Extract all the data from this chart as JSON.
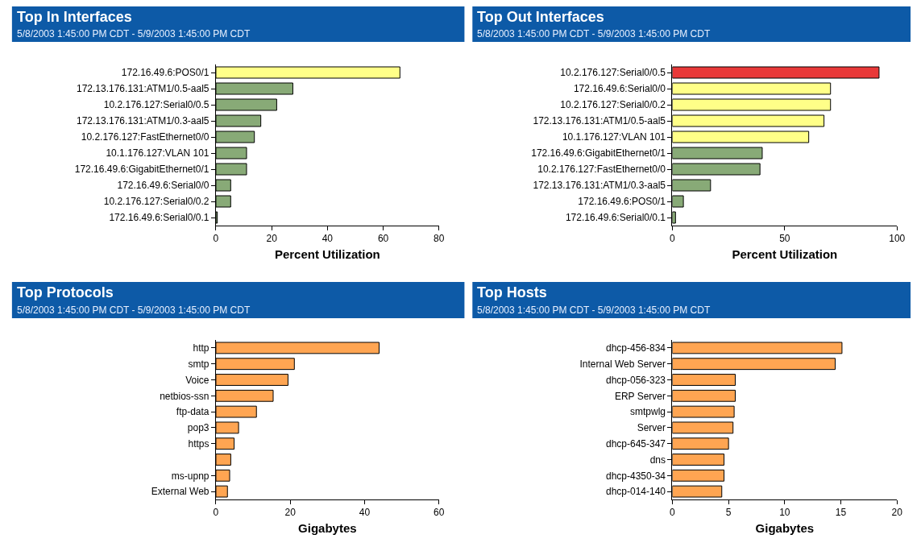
{
  "chart_data": [
    {
      "type": "bar",
      "orientation": "horizontal",
      "title": "Top In Interfaces",
      "subtitle": "5/8/2003 1:45:00 PM CDT - 5/9/2003 1:45:00 PM CDT",
      "xlabel": "Percent Utilization",
      "categories": [
        "172.16.49.6:POS0/1",
        "172.13.176.131:ATM1/0.5-aal5",
        "10.2.176.127:Serial0/0.5",
        "172.13.176.131:ATM1/0.3-aal5",
        "10.2.176.127:FastEthernet0/0",
        "10.1.176.127:VLAN 101",
        "172.16.49.6:GigabitEthernet0/1",
        "172.16.49.6:Serial0/0",
        "10.2.176.127:Serial0/0.2",
        "172.16.49.6:Serial0/0.1"
      ],
      "values": [
        66,
        27.6,
        21.8,
        16.1,
        13.8,
        11,
        11,
        5.3,
        5.3,
        0.5
      ],
      "colors": [
        "#ffff88",
        "#88aa77",
        "#88aa77",
        "#88aa77",
        "#88aa77",
        "#88aa77",
        "#88aa77",
        "#88aa77",
        "#88aa77",
        "#88aa77"
      ],
      "xlim": [
        0,
        80
      ],
      "xticks": [
        0,
        20,
        40,
        60,
        80
      ]
    },
    {
      "type": "bar",
      "orientation": "horizontal",
      "title": "Top Out Interfaces",
      "subtitle": "5/8/2003 1:45:00 PM CDT - 5/9/2003 1:45:00 PM CDT",
      "xlabel": "Percent Utilization",
      "categories": [
        "10.2.176.127:Serial0/0.5",
        "172.16.49.6:Serial0/0",
        "10.2.176.127:Serial0/0.2",
        "172.13.176.131:ATM1/0.5-aal5",
        "10.1.176.127:VLAN 101",
        "172.16.49.6:GigabitEthernet0/1",
        "10.2.176.127:FastEthernet0/0",
        "172.13.176.131:ATM1/0.3-aal5",
        "172.16.49.6:POS0/1",
        "172.16.49.6:Serial0/0.1"
      ],
      "values": [
        92,
        70.4,
        70.4,
        67.5,
        60.7,
        40,
        39,
        17,
        4.9,
        1.4
      ],
      "colors": [
        "#e83838",
        "#ffff88",
        "#ffff88",
        "#ffff88",
        "#ffff88",
        "#88aa77",
        "#88aa77",
        "#88aa77",
        "#88aa77",
        "#88aa77"
      ],
      "xlim": [
        0,
        100
      ],
      "xticks": [
        0,
        50,
        100
      ]
    },
    {
      "type": "bar",
      "orientation": "horizontal",
      "title": "Top Protocols",
      "subtitle": "5/8/2003 1:45:00 PM CDT - 5/9/2003 1:45:00 PM CDT",
      "xlabel": "Gigabytes",
      "categories": [
        "http",
        "smtp",
        "Voice",
        "netbios-ssn",
        "ftp-data",
        "pop3",
        "https",
        null,
        "ms-upnp",
        "External Web"
      ],
      "values": [
        43.9,
        21.1,
        19.4,
        15.4,
        10.9,
        6.1,
        4.9,
        4.0,
        3.7,
        3.1
      ],
      "colors": [
        "#ffa552",
        "#ffa552",
        "#ffa552",
        "#ffa552",
        "#ffa552",
        "#ffa552",
        "#ffa552",
        "#ffa552",
        "#ffa552",
        "#ffa552"
      ],
      "xlim": [
        0,
        60
      ],
      "xticks": [
        0,
        20,
        40,
        60
      ]
    },
    {
      "type": "bar",
      "orientation": "horizontal",
      "title": "Top Hosts",
      "subtitle": "5/8/2003 1:45:00 PM CDT - 5/9/2003 1:45:00 PM CDT",
      "xlabel": "Gigabytes",
      "categories": [
        "dhcp-456-834",
        "Internal Web Server",
        "dhcp-056-323",
        "ERP Server",
        "smtpwlg",
        "Server",
        "dhcp-645-347",
        "dns",
        "dhcp-4350-34",
        "dhcp-014-140"
      ],
      "values": [
        15.1,
        14.5,
        5.6,
        5.6,
        5.5,
        5.4,
        5.0,
        4.6,
        4.6,
        4.4
      ],
      "colors": [
        "#ffa552",
        "#ffa552",
        "#ffa552",
        "#ffa552",
        "#ffa552",
        "#ffa552",
        "#ffa552",
        "#ffa552",
        "#ffa552",
        "#ffa552"
      ],
      "xlim": [
        0,
        20
      ],
      "xticks": [
        0,
        5,
        10,
        15,
        20
      ]
    }
  ]
}
